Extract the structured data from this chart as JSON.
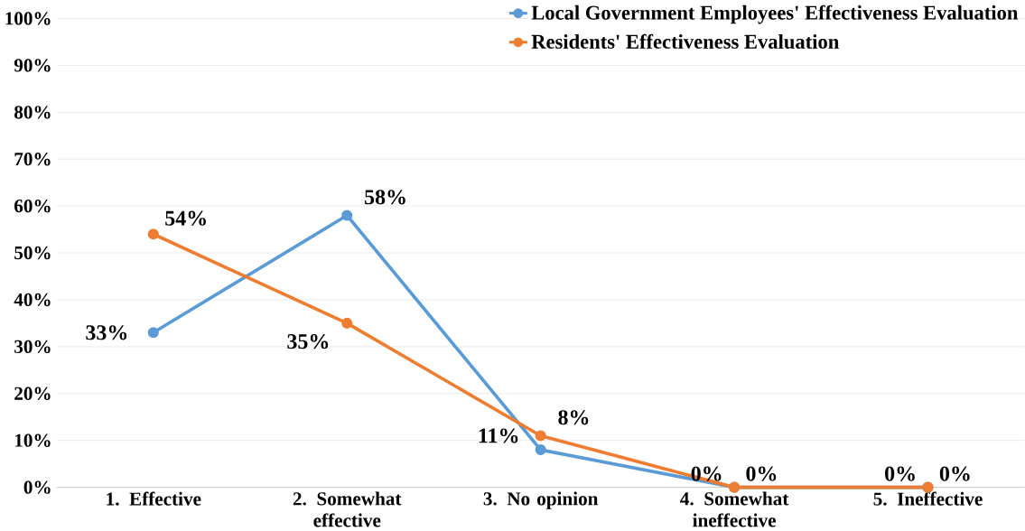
{
  "chart_data": {
    "type": "line",
    "categories": [
      "1. Effective",
      "2. Somewhat effective",
      "3. No opinion",
      "4. Somewhat ineffective",
      "5. Ineffective"
    ],
    "series": [
      {
        "name": "Local Government Employees' Effectiveness Evaluation",
        "color": "#5b9bd5",
        "values": [
          33,
          58,
          8,
          0,
          0
        ],
        "value_labels": [
          "33%",
          "58%",
          "8%",
          "0%",
          "0%"
        ]
      },
      {
        "name": "Residents' Effectiveness Evaluation",
        "color": "#ed7d31",
        "values": [
          54,
          35,
          11,
          0,
          0
        ],
        "value_labels": [
          "54%",
          "35%",
          "11%",
          "0%",
          "0%"
        ]
      }
    ],
    "ylim": [
      0,
      100
    ],
    "yticks": [
      {
        "value": 0,
        "label": "0%"
      },
      {
        "value": 10,
        "label": "10%"
      },
      {
        "value": 20,
        "label": "20%"
      },
      {
        "value": 30,
        "label": "30%"
      },
      {
        "value": 40,
        "label": "40%"
      },
      {
        "value": 50,
        "label": "50%"
      },
      {
        "value": 60,
        "label": "60%"
      },
      {
        "value": 70,
        "label": "70%"
      },
      {
        "value": 80,
        "label": "80%"
      },
      {
        "value": 90,
        "label": "90%"
      },
      {
        "value": 100,
        "label": "100%"
      }
    ],
    "grid": "y",
    "legend": "top right",
    "marker": "circle",
    "line_style": "solid"
  }
}
